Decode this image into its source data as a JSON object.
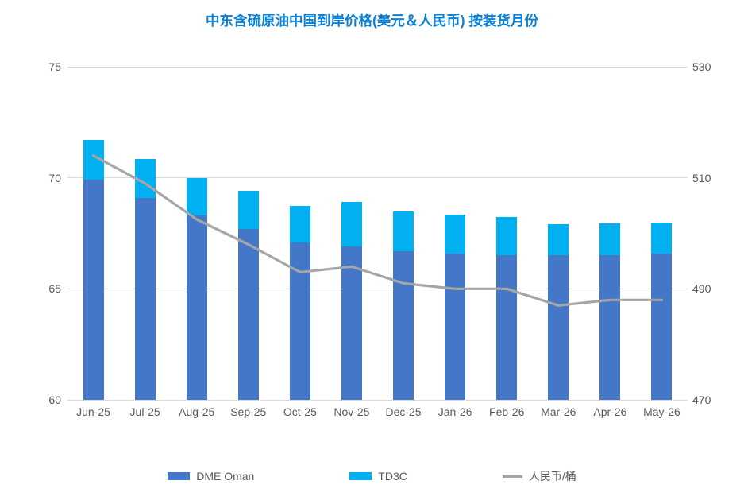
{
  "title": "中东含硫原油中国到岸价格(美元＆人民币) 按装货月份",
  "colors": {
    "dme_oman": "#4577C9",
    "td3c": "#00B0F0",
    "rmb_line": "#A6A6A6",
    "title_text": "#0981D9",
    "axis_text": "#595959",
    "gridline": "#D9D9D9"
  },
  "chart_data": {
    "type": "bar",
    "subtype": "stacked-bars-with-secondary-axis-line",
    "title": "中东含硫原油中国到岸价格(美元＆人民币) 按装货月份",
    "categories": [
      "Jun-25",
      "Jul-25",
      "Aug-25",
      "Sep-25",
      "Oct-25",
      "Nov-25",
      "Dec-25",
      "Jan-26",
      "Feb-26",
      "Mar-26",
      "Apr-26",
      "May-26"
    ],
    "series": [
      {
        "name": "DME Oman",
        "type": "bar",
        "stack": "price",
        "axis": "left",
        "values": [
          69.9,
          69.1,
          68.3,
          67.7,
          67.1,
          66.9,
          66.7,
          66.6,
          66.5,
          66.5,
          66.5,
          66.6
        ]
      },
      {
        "name": "TD3C",
        "type": "bar",
        "stack": "price",
        "axis": "left",
        "values": [
          1.8,
          1.75,
          1.7,
          1.7,
          1.65,
          2.0,
          1.8,
          1.75,
          1.75,
          1.4,
          1.45,
          1.4
        ]
      },
      {
        "name": "人民币/桶",
        "type": "line",
        "axis": "right",
        "values": [
          514,
          509,
          502.5,
          498,
          493,
          494,
          491,
          490,
          490,
          487,
          488,
          488
        ]
      }
    ],
    "stacked_totals": [
      71.7,
      70.85,
      70.0,
      69.4,
      68.75,
      68.9,
      68.5,
      68.35,
      68.25,
      67.9,
      67.95,
      68.0
    ],
    "left_axis": {
      "min": 60,
      "max": 75,
      "ticks": [
        75,
        70,
        65,
        60
      ]
    },
    "right_axis": {
      "min": 470,
      "max": 530,
      "ticks": [
        530,
        510,
        490,
        470
      ]
    },
    "grid": true,
    "legend_position": "bottom"
  },
  "legend": {
    "items": [
      "DME Oman",
      "TD3C",
      "人民币/桶"
    ]
  }
}
